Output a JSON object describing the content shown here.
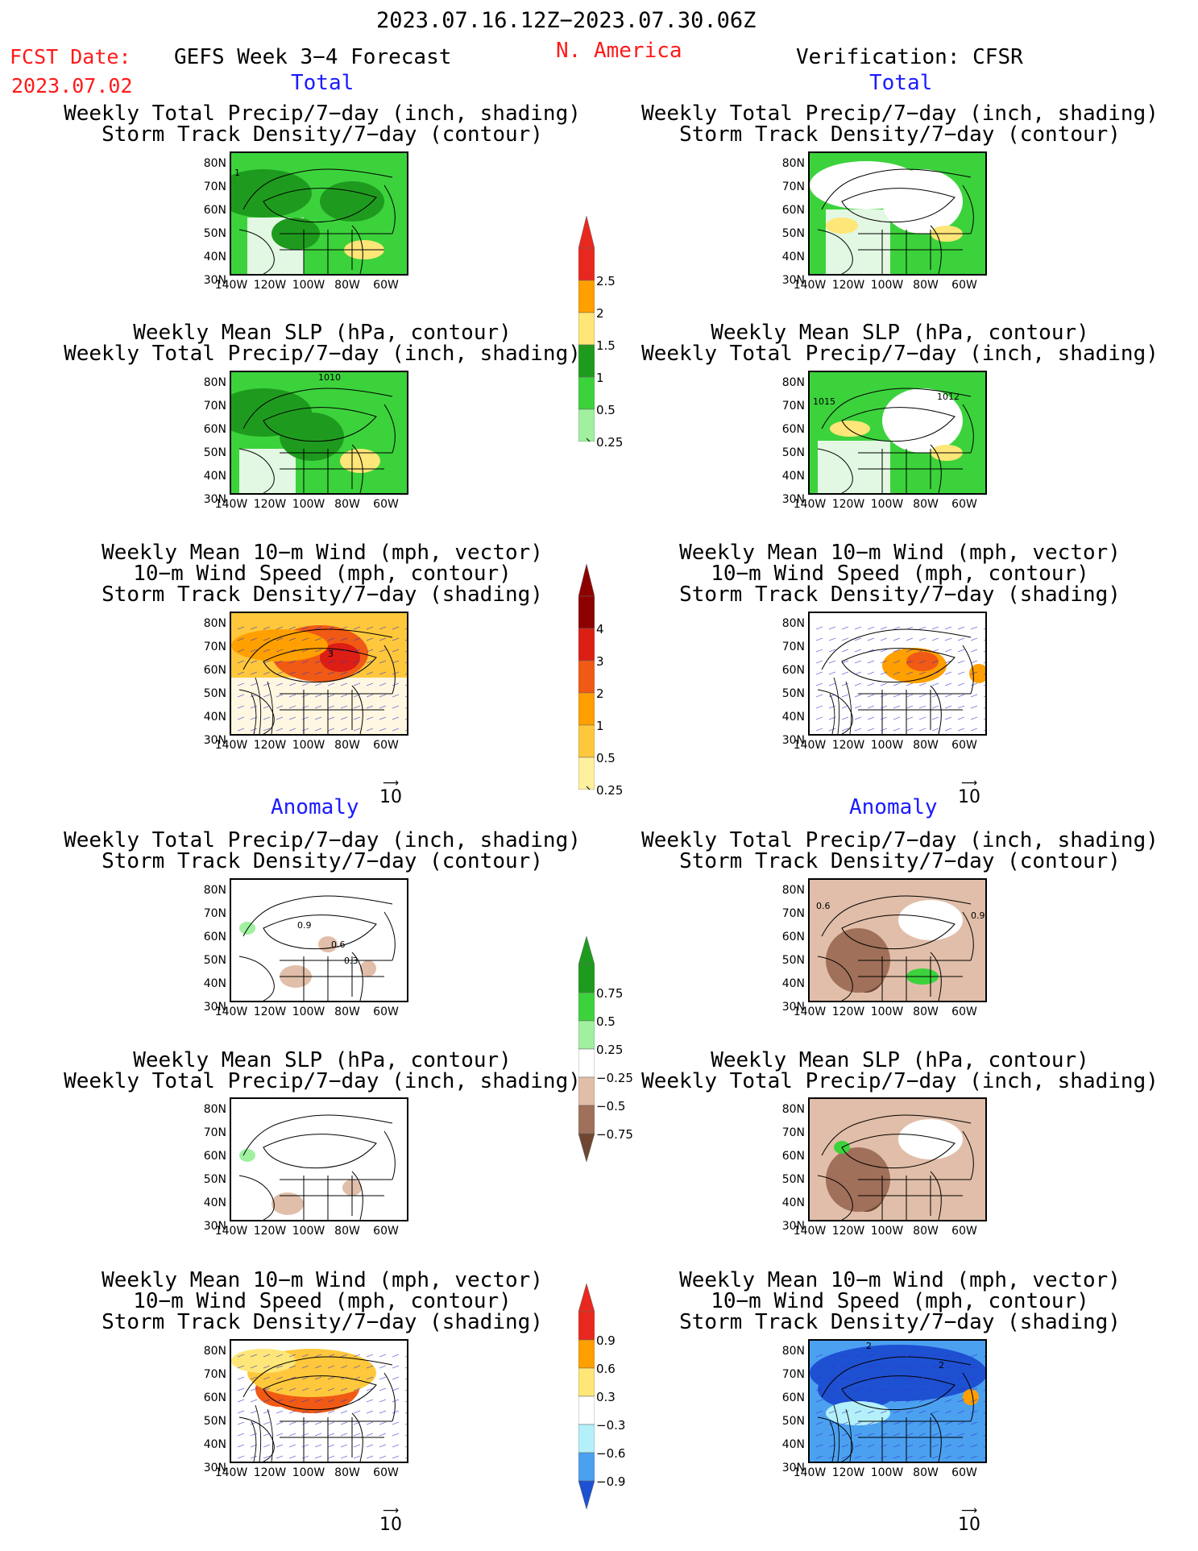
{
  "header": {
    "date_range": "2023.07.16.12Z−2023.07.30.06Z",
    "fcst_label": "FCST Date:",
    "fcst_date": "2023.07.02",
    "model": "GEFS Week 3−4 Forecast",
    "region": "N. America",
    "verification": "Verification: CFSR"
  },
  "sections": {
    "total_left": "Total",
    "total_right": "Total",
    "anomaly_left": "Anomaly",
    "anomaly_right": "Anomaly"
  },
  "axes": {
    "lat_ticks": [
      "80N",
      "70N",
      "60N",
      "50N",
      "40N",
      "30N"
    ],
    "lon_ticks": [
      "140W",
      "120W",
      "100W",
      "80W",
      "60W"
    ]
  },
  "titles": {
    "precip_track": [
      "Weekly Total Precip/7−day (inch, shading)",
      "Storm Track Density/7−day (contour)"
    ],
    "slp_precip": [
      "Weekly Mean SLP (hPa, contour)",
      "Weekly Total Precip/7−day (inch, shading)"
    ],
    "wind_track": [
      "Weekly Mean 10−m Wind (mph, vector)",
      "10−m Wind Speed (mph, contour)",
      "Storm Track Density/7−day (shading)"
    ]
  },
  "vector_ref": "10",
  "contour_labels": {
    "p1": "1",
    "p4": "1010",
    "p5a": "1015",
    "p5b": "1012",
    "p3": "3",
    "a1": "0.9",
    "a2": "0.6",
    "a3": "0.3",
    "b1": "0.6",
    "b2": "0.9",
    "c1": "2",
    "c2": "2"
  },
  "colorbars": {
    "precip_total": {
      "labels": [
        "2.5",
        "2",
        "1.5",
        "1",
        "0.5",
        "0.25"
      ],
      "colors": [
        "#e8281e",
        "#ffa000",
        "#ffe678",
        "#1e9b1e",
        "#3cd23c",
        "#a0f0a0"
      ]
    },
    "track_total": {
      "labels": [
        "4",
        "3",
        "2",
        "1",
        "0.5",
        "0.25"
      ],
      "colors": [
        "#8c0000",
        "#dc1e14",
        "#f05a14",
        "#ffa000",
        "#ffc83c",
        "#fff0a0"
      ]
    },
    "precip_anom": {
      "labels": [
        "0.75",
        "0.5",
        "0.25",
        "−0.25",
        "−0.5",
        "−0.75"
      ],
      "colors": [
        "#1e9b1e",
        "#3cd23c",
        "#a0f0a0",
        "#ffffff",
        "#e1bea9",
        "#a0705a",
        "#6e4632"
      ]
    },
    "track_anom": {
      "labels": [
        "0.9",
        "0.6",
        "0.3",
        "−0.3",
        "−0.6",
        "−0.9"
      ],
      "colors": [
        "#e8281e",
        "#ffa000",
        "#ffe678",
        "#ffffff",
        "#b4f0fa",
        "#4ba0f0",
        "#1e50d2"
      ]
    }
  }
}
